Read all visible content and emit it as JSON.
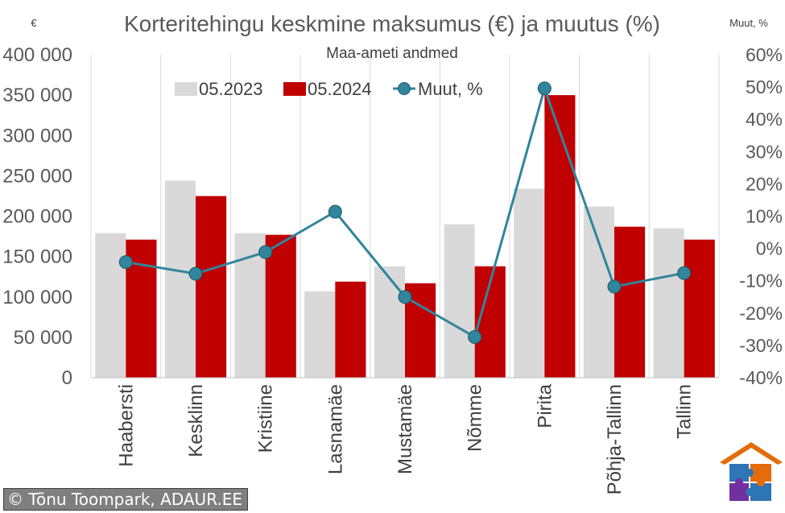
{
  "chart_data": {
    "type": "bar",
    "title": "Korteritehingu keskmine maksumus (€) ja muutus (%)",
    "subtitle": "Maa-ameti andmed",
    "left_axis_unit": "€",
    "right_axis_unit": "Muut, %",
    "categories": [
      "Haabersti",
      "Kesklinn",
      "Kristiine",
      "Lasnamäe",
      "Mustamäe",
      "Nõmme",
      "Pirita",
      "Põhja-Tallinn",
      "Tallinn"
    ],
    "series": [
      {
        "name": "05.2023",
        "type": "bar",
        "axis": "left",
        "color": "#d9d9d9",
        "values": [
          179000,
          244000,
          179000,
          107000,
          138000,
          190000,
          234000,
          212000,
          185000
        ]
      },
      {
        "name": "05.2024",
        "type": "bar",
        "axis": "left",
        "color": "#c00000",
        "values": [
          171000,
          225000,
          177000,
          119000,
          117000,
          138000,
          350000,
          187000,
          171000
        ]
      },
      {
        "name": "Muut, %",
        "type": "line",
        "axis": "right",
        "color": "#31859c",
        "values": [
          -4.2,
          -7.8,
          -1.1,
          11.4,
          -15.0,
          -27.4,
          49.6,
          -11.8,
          -7.6
        ]
      }
    ],
    "left_axis": {
      "ylim": [
        0,
        400000
      ],
      "ticks": [
        0,
        50000,
        100000,
        150000,
        200000,
        250000,
        300000,
        350000,
        400000
      ],
      "tick_labels": [
        "0",
        "50 000",
        "100 000",
        "150 000",
        "200 000",
        "250 000",
        "300 000",
        "350 000",
        "400 000"
      ]
    },
    "right_axis": {
      "ylim": [
        -40,
        60
      ],
      "ticks": [
        -40,
        -30,
        -20,
        -10,
        0,
        10,
        20,
        30,
        40,
        50,
        60
      ],
      "tick_labels": [
        "-40%",
        "-30%",
        "-20%",
        "-10%",
        "0%",
        "10%",
        "20%",
        "30%",
        "40%",
        "50%",
        "60%"
      ]
    },
    "legend_position": "top-center",
    "grid": "vertical"
  },
  "footer": {
    "copyright_symbol": "©",
    "credit": "Tõnu Toompark, ADAUR.EE"
  },
  "logo": {
    "icon": "puzzle-house-logo",
    "colors": [
      "#e46c0a",
      "#2e75b6",
      "#7030a0"
    ]
  }
}
